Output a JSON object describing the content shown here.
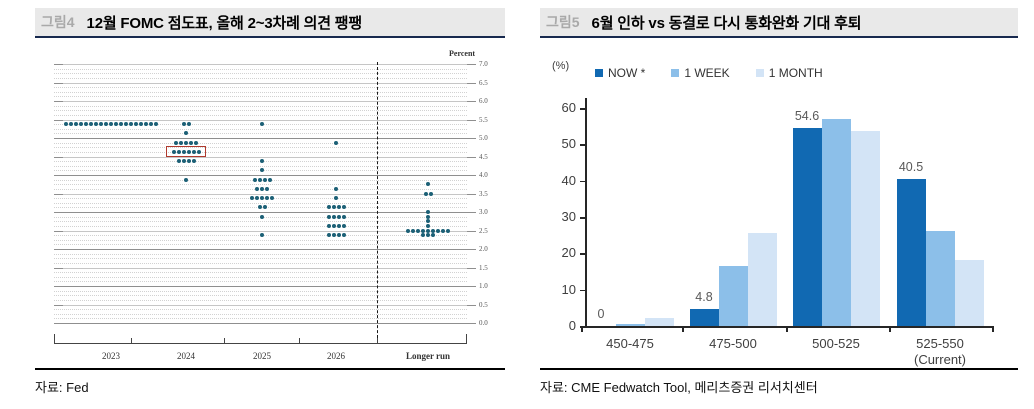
{
  "figure4": {
    "tag": "그림4",
    "title": "12월 FOMC 점도표, 올해 2~3차례 의견 팽팽",
    "source": "자료: Fed"
  },
  "figure5": {
    "tag": "그림5",
    "title": "6월 인하 vs 동결로 다시 통화완화 기대 후퇴",
    "source": "자료: CME Fedwatch Tool, 메리츠증권 리서치센터"
  },
  "chart_data": [
    {
      "type": "scatter",
      "name": "december-fomc-dot-plot",
      "ylabel": "Percent",
      "ylim": [
        0.0,
        7.0
      ],
      "ytick_step": 0.5,
      "grid": true,
      "dot_color": "#1c6076",
      "categories": [
        "2023",
        "2024",
        "2025",
        "2026",
        "Longer run"
      ],
      "columns": [
        {
          "label": "2023",
          "dots": [
            {
              "value": 5.375,
              "count": 19
            }
          ]
        },
        {
          "label": "2024",
          "dots": [
            {
              "value": 5.375,
              "count": 2
            },
            {
              "value": 5.125,
              "count": 1
            },
            {
              "value": 4.875,
              "count": 5
            },
            {
              "value": 4.625,
              "count": 6
            },
            {
              "value": 4.375,
              "count": 4
            },
            {
              "value": 3.875,
              "count": 1
            }
          ]
        },
        {
          "label": "2025",
          "dots": [
            {
              "value": 5.375,
              "count": 1
            },
            {
              "value": 4.375,
              "count": 1
            },
            {
              "value": 4.125,
              "count": 1
            },
            {
              "value": 3.875,
              "count": 4
            },
            {
              "value": 3.625,
              "count": 3
            },
            {
              "value": 3.375,
              "count": 5
            },
            {
              "value": 3.125,
              "count": 2
            },
            {
              "value": 2.875,
              "count": 1
            },
            {
              "value": 2.375,
              "count": 1
            }
          ]
        },
        {
          "label": "2026",
          "dots": [
            {
              "value": 4.875,
              "count": 1
            },
            {
              "value": 3.625,
              "count": 1
            },
            {
              "value": 3.375,
              "count": 1
            },
            {
              "value": 3.125,
              "count": 4
            },
            {
              "value": 2.875,
              "count": 4
            },
            {
              "value": 2.625,
              "count": 4
            },
            {
              "value": 2.375,
              "count": 4
            }
          ]
        },
        {
          "label": "Longer run",
          "dots": [
            {
              "value": 3.75,
              "count": 1
            },
            {
              "value": 3.5,
              "count": 2
            },
            {
              "value": 3.0,
              "count": 1
            },
            {
              "value": 2.875,
              "count": 1
            },
            {
              "value": 2.75,
              "count": 1
            },
            {
              "value": 2.625,
              "count": 1
            },
            {
              "value": 2.5,
              "count": 9
            },
            {
              "value": 2.375,
              "count": 3
            }
          ]
        }
      ],
      "highlight_box": {
        "column": "2024",
        "value": 4.625,
        "color": "#b03a2e"
      }
    },
    {
      "type": "bar",
      "ylabel": "(%)",
      "ylim": [
        0,
        60
      ],
      "ytick_step": 10,
      "legend_position": "top",
      "categories": [
        {
          "label": "450-475",
          "sublabel": ""
        },
        {
          "label": "475-500",
          "sublabel": ""
        },
        {
          "label": "500-525",
          "sublabel": ""
        },
        {
          "label": "525-550",
          "sublabel": "(Current)"
        }
      ],
      "series": [
        {
          "name": "NOW *",
          "color": "#1169b2",
          "values": [
            0,
            4.8,
            54.6,
            40.5
          ]
        },
        {
          "name": "1 WEEK",
          "color": "#8cbfe9",
          "values": [
            0.6,
            16.4,
            57.0,
            26.2
          ]
        },
        {
          "name": "1 MONTH",
          "color": "#d3e4f6",
          "values": [
            2.1,
            25.5,
            53.7,
            18.1
          ]
        }
      ],
      "data_labels": {
        "series": "NOW *",
        "values": [
          "0",
          "4.8",
          "54.6",
          "40.5"
        ]
      }
    }
  ]
}
